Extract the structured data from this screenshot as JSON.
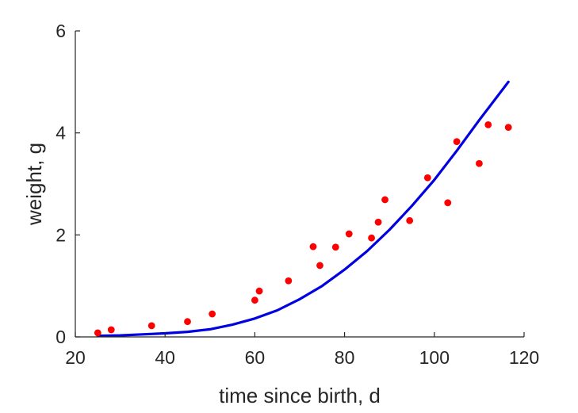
{
  "chart_data": {
    "type": "scatter",
    "title": "",
    "xlabel": "time since birth, d",
    "ylabel": "weight, g",
    "xlim": [
      20,
      120
    ],
    "ylim": [
      0,
      6
    ],
    "xticks": [
      20,
      40,
      60,
      80,
      100,
      120
    ],
    "yticks": [
      0,
      2,
      4,
      6
    ],
    "grid": false,
    "series": [
      {
        "type": "scatter",
        "color": "#ff0000",
        "x": [
          25,
          28,
          37,
          45,
          50.5,
          60,
          61,
          67.5,
          73,
          74.5,
          78,
          81,
          86,
          87.5,
          89,
          94.5,
          98.5,
          103,
          105,
          110,
          112,
          116.5
        ],
        "y": [
          0.08,
          0.14,
          0.22,
          0.3,
          0.45,
          0.72,
          0.9,
          1.1,
          1.77,
          1.4,
          1.76,
          2.02,
          1.94,
          2.25,
          2.69,
          2.28,
          3.12,
          2.63,
          3.83,
          3.4,
          4.16,
          4.11
        ]
      },
      {
        "type": "line",
        "color": "#0000e0",
        "x": [
          25,
          30,
          35,
          40,
          45,
          50,
          55,
          60,
          65,
          70,
          75,
          80,
          85,
          90,
          95,
          100,
          105,
          110,
          116.5
        ],
        "y": [
          0.02,
          0.03,
          0.05,
          0.07,
          0.1,
          0.15,
          0.24,
          0.36,
          0.52,
          0.74,
          1.0,
          1.32,
          1.68,
          2.1,
          2.57,
          3.08,
          3.65,
          4.25,
          5.0
        ]
      }
    ]
  }
}
